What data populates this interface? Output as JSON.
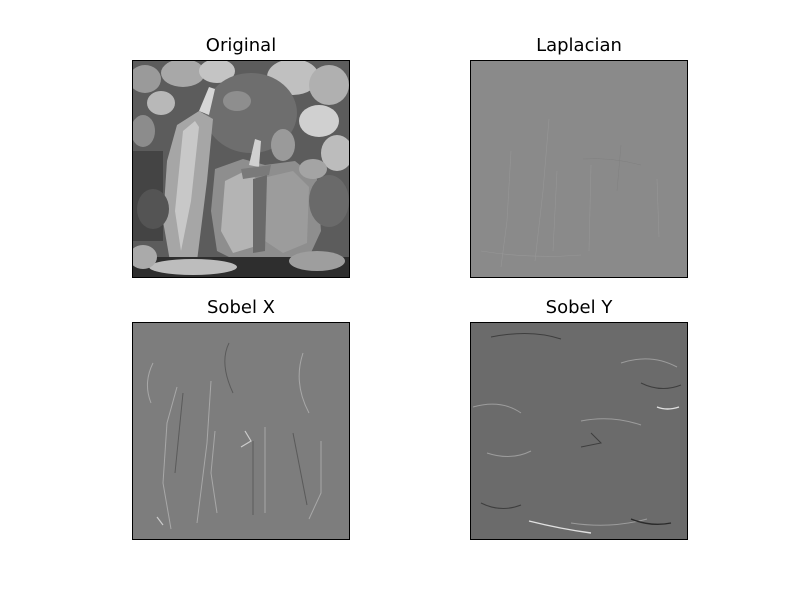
{
  "panels": [
    {
      "title": "Original",
      "kind": "original"
    },
    {
      "title": "Laplacian",
      "kind": "laplacian"
    },
    {
      "title": "Sobel X",
      "kind": "sobel-x"
    },
    {
      "title": "Sobel Y",
      "kind": "sobel-y"
    }
  ],
  "colors": {
    "page_background": "#ffffff",
    "frame": "#000000",
    "laplacian_gray": "#8a8a8a",
    "sobel_x_gray": "#7d7d7d",
    "sobel_y_gray": "#6b6b6b"
  }
}
